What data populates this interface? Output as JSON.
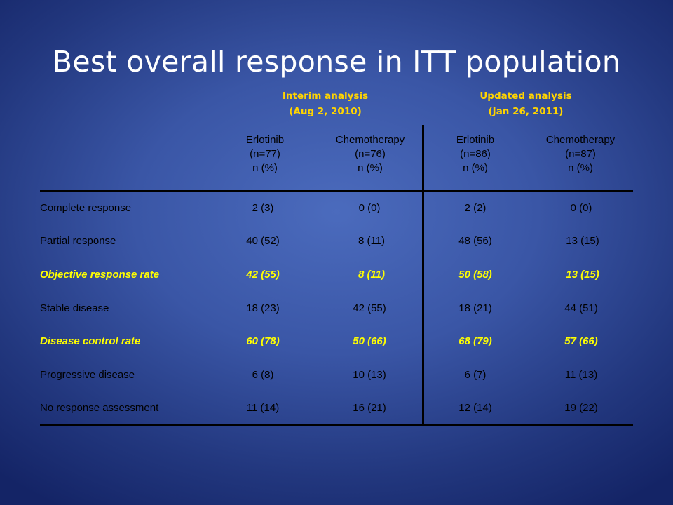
{
  "title": "Best overall response in ITT population",
  "groups": [
    {
      "name": "Interim analysis",
      "date": "(Aug 2, 2010)"
    },
    {
      "name": "Updated analysis",
      "date": "(Jan 26, 2011)"
    }
  ],
  "columns": [
    {
      "name": "Erlotinib",
      "n": "(n=77)",
      "unit": "n (%)"
    },
    {
      "name": "Chemotherapy",
      "n": "(n=76)",
      "unit": "n (%)"
    },
    {
      "name": "Erlotinib",
      "n": "(n=86)",
      "unit": "n (%)"
    },
    {
      "name": "Chemotherapy",
      "n": "(n=87)",
      "unit": "n (%)"
    }
  ],
  "rows": [
    {
      "label": "Complete response",
      "cells": [
        "2 (3)",
        "0 (0)",
        "2 (2)",
        "0 (0)"
      ]
    },
    {
      "label": "Partial response",
      "cells": [
        "40 (52)",
        "8 (11)",
        "48 (56)",
        "13 (15)"
      ]
    },
    {
      "label": "Objective response rate",
      "cells": [
        "42 (55)",
        "8 (11)",
        "50 (58)",
        "13 (15)"
      ]
    },
    {
      "label": "Stable disease",
      "cells": [
        "18 (23)",
        "42 (55)",
        "18 (21)",
        "44 (51)"
      ]
    },
    {
      "label": "Disease control rate",
      "cells": [
        "60 (78)",
        "50 (66)",
        "68 (79)",
        "57 (66)"
      ]
    },
    {
      "label": "Progressive disease",
      "cells": [
        "6 (8)",
        "10 (13)",
        "6 (7)",
        "11 (13)"
      ]
    },
    {
      "label": "No response assessment",
      "cells": [
        "11 (14)",
        "16 (21)",
        "12 (14)",
        "19 (22)"
      ]
    }
  ],
  "colors": {
    "highlight": "#ffff00",
    "group_header": "#ffd400",
    "title": "#ffffff"
  }
}
